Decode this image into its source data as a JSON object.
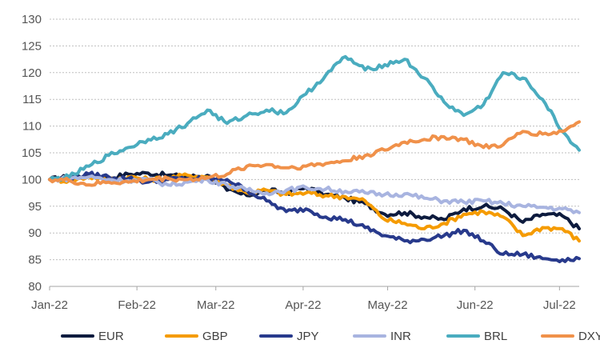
{
  "chart_data": {
    "type": "line",
    "title": "",
    "xlabel": "",
    "ylabel": "",
    "ylim": [
      80,
      130
    ],
    "yticks": [
      80,
      85,
      90,
      95,
      100,
      105,
      110,
      115,
      120,
      125,
      130
    ],
    "xlim": [
      "2022-01-01",
      "2022-07-08"
    ],
    "xticks": [
      {
        "date": "2022-01-01",
        "label": "Jan-22"
      },
      {
        "date": "2022-02-01",
        "label": "Feb-22"
      },
      {
        "date": "2022-03-01",
        "label": "Mar-22"
      },
      {
        "date": "2022-04-01",
        "label": "Apr-22"
      },
      {
        "date": "2022-05-01",
        "label": "May-22"
      },
      {
        "date": "2022-06-01",
        "label": "Jun-22"
      },
      {
        "date": "2022-07-01",
        "label": "Jul-22"
      }
    ],
    "grid": "horizontal",
    "legend_position": "bottom",
    "series": [
      {
        "name": "EUR",
        "color": "#0d1b3e",
        "points": [
          [
            "2022-01-01",
            100
          ],
          [
            "2022-01-08",
            100.5
          ],
          [
            "2022-01-15",
            100.8
          ],
          [
            "2022-01-22",
            100.3
          ],
          [
            "2022-01-29",
            101
          ],
          [
            "2022-02-05",
            101.2
          ],
          [
            "2022-02-12",
            100.8
          ],
          [
            "2022-02-19",
            100.5
          ],
          [
            "2022-02-26",
            100.8
          ],
          [
            "2022-03-05",
            98
          ],
          [
            "2022-03-12",
            97
          ],
          [
            "2022-03-19",
            98
          ],
          [
            "2022-03-26",
            97.5
          ],
          [
            "2022-04-02",
            98.5
          ],
          [
            "2022-04-09",
            97.2
          ],
          [
            "2022-04-16",
            96.5
          ],
          [
            "2022-04-23",
            95.5
          ],
          [
            "2022-04-30",
            93.5
          ],
          [
            "2022-05-07",
            93.8
          ],
          [
            "2022-05-14",
            93
          ],
          [
            "2022-05-21",
            92.5
          ],
          [
            "2022-05-28",
            94.5
          ],
          [
            "2022-06-04",
            95
          ],
          [
            "2022-06-11",
            94.5
          ],
          [
            "2022-06-18",
            92
          ],
          [
            "2022-06-25",
            93.5
          ],
          [
            "2022-07-02",
            93.2
          ],
          [
            "2022-07-08",
            90.8
          ]
        ]
      },
      {
        "name": "GBP",
        "color": "#f59b00",
        "points": [
          [
            "2022-01-01",
            100
          ],
          [
            "2022-01-08",
            99.8
          ],
          [
            "2022-01-15",
            100.5
          ],
          [
            "2022-01-22",
            100
          ],
          [
            "2022-01-29",
            100.5
          ],
          [
            "2022-02-05",
            100
          ],
          [
            "2022-02-12",
            100.3
          ],
          [
            "2022-02-19",
            100.8
          ],
          [
            "2022-02-26",
            100.5
          ],
          [
            "2022-03-05",
            99
          ],
          [
            "2022-03-12",
            97.5
          ],
          [
            "2022-03-19",
            98
          ],
          [
            "2022-03-26",
            97.2
          ],
          [
            "2022-04-02",
            97.5
          ],
          [
            "2022-04-09",
            97
          ],
          [
            "2022-04-16",
            96.8
          ],
          [
            "2022-04-23",
            96
          ],
          [
            "2022-04-30",
            92.5
          ],
          [
            "2022-05-07",
            91.8
          ],
          [
            "2022-05-14",
            90.8
          ],
          [
            "2022-05-21",
            91.8
          ],
          [
            "2022-05-28",
            93.5
          ],
          [
            "2022-06-04",
            94
          ],
          [
            "2022-06-11",
            93
          ],
          [
            "2022-06-18",
            89.5
          ],
          [
            "2022-06-25",
            91
          ],
          [
            "2022-07-02",
            90.8
          ],
          [
            "2022-07-08",
            88.5
          ]
        ]
      },
      {
        "name": "JPY",
        "color": "#283a8c",
        "points": [
          [
            "2022-01-01",
            100
          ],
          [
            "2022-01-08",
            100.2
          ],
          [
            "2022-01-15",
            101
          ],
          [
            "2022-01-22",
            100.5
          ],
          [
            "2022-01-29",
            100.2
          ],
          [
            "2022-02-05",
            99.5
          ],
          [
            "2022-02-12",
            100
          ],
          [
            "2022-02-19",
            100.2
          ],
          [
            "2022-02-26",
            100
          ],
          [
            "2022-03-05",
            100
          ],
          [
            "2022-03-12",
            98
          ],
          [
            "2022-03-19",
            96
          ],
          [
            "2022-03-26",
            94
          ],
          [
            "2022-04-02",
            94.5
          ],
          [
            "2022-04-09",
            93
          ],
          [
            "2022-04-16",
            92.5
          ],
          [
            "2022-04-23",
            91
          ],
          [
            "2022-04-30",
            89.5
          ],
          [
            "2022-05-07",
            88.5
          ],
          [
            "2022-05-14",
            88.8
          ],
          [
            "2022-05-21",
            89.5
          ],
          [
            "2022-05-28",
            90.5
          ],
          [
            "2022-06-04",
            88.5
          ],
          [
            "2022-06-11",
            86
          ],
          [
            "2022-06-18",
            86
          ],
          [
            "2022-06-25",
            85.2
          ],
          [
            "2022-07-02",
            85
          ],
          [
            "2022-07-08",
            85.2
          ]
        ]
      },
      {
        "name": "INR",
        "color": "#a8b4e0",
        "points": [
          [
            "2022-01-01",
            100
          ],
          [
            "2022-01-08",
            100.2
          ],
          [
            "2022-01-15",
            100.5
          ],
          [
            "2022-01-22",
            100
          ],
          [
            "2022-01-29",
            99.8
          ],
          [
            "2022-02-05",
            100
          ],
          [
            "2022-02-12",
            99
          ],
          [
            "2022-02-19",
            99.5
          ],
          [
            "2022-02-26",
            100
          ],
          [
            "2022-03-05",
            99
          ],
          [
            "2022-03-12",
            98
          ],
          [
            "2022-03-19",
            97.5
          ],
          [
            "2022-03-26",
            98
          ],
          [
            "2022-04-02",
            98.5
          ],
          [
            "2022-04-09",
            98.2
          ],
          [
            "2022-04-16",
            97.8
          ],
          [
            "2022-04-23",
            97.5
          ],
          [
            "2022-04-30",
            97.2
          ],
          [
            "2022-05-07",
            97.3
          ],
          [
            "2022-05-14",
            96.5
          ],
          [
            "2022-05-21",
            96
          ],
          [
            "2022-05-28",
            95.8
          ],
          [
            "2022-06-04",
            96
          ],
          [
            "2022-06-11",
            95.5
          ],
          [
            "2022-06-18",
            95
          ],
          [
            "2022-06-25",
            94.8
          ],
          [
            "2022-07-02",
            94.5
          ],
          [
            "2022-07-08",
            93.8
          ]
        ]
      },
      {
        "name": "BRL",
        "color": "#4aacbf",
        "points": [
          [
            "2022-01-01",
            100
          ],
          [
            "2022-01-08",
            100.5
          ],
          [
            "2022-01-15",
            102.5
          ],
          [
            "2022-01-22",
            104.5
          ],
          [
            "2022-01-29",
            106
          ],
          [
            "2022-02-05",
            107.5
          ],
          [
            "2022-02-12",
            108.5
          ],
          [
            "2022-02-19",
            110.5
          ],
          [
            "2022-02-26",
            113
          ],
          [
            "2022-03-05",
            110.5
          ],
          [
            "2022-03-12",
            112
          ],
          [
            "2022-03-19",
            113
          ],
          [
            "2022-03-26",
            112.5
          ],
          [
            "2022-04-02",
            116
          ],
          [
            "2022-04-09",
            119.5
          ],
          [
            "2022-04-16",
            123
          ],
          [
            "2022-04-23",
            120.5
          ],
          [
            "2022-04-30",
            121.5
          ],
          [
            "2022-05-07",
            122.5
          ],
          [
            "2022-05-14",
            119
          ],
          [
            "2022-05-21",
            114.5
          ],
          [
            "2022-05-28",
            112
          ],
          [
            "2022-06-04",
            114
          ],
          [
            "2022-06-11",
            120
          ],
          [
            "2022-06-18",
            119
          ],
          [
            "2022-06-25",
            115
          ],
          [
            "2022-07-02",
            109
          ],
          [
            "2022-07-08",
            105.5
          ]
        ]
      },
      {
        "name": "DXY",
        "color": "#f0914a",
        "points": [
          [
            "2022-01-01",
            100
          ],
          [
            "2022-01-08",
            99.8
          ],
          [
            "2022-01-15",
            99
          ],
          [
            "2022-01-22",
            99.5
          ],
          [
            "2022-01-29",
            99.5
          ],
          [
            "2022-02-05",
            100
          ],
          [
            "2022-02-12",
            100.2
          ],
          [
            "2022-02-19",
            100
          ],
          [
            "2022-02-26",
            100.3
          ],
          [
            "2022-03-05",
            101
          ],
          [
            "2022-03-12",
            102.5
          ],
          [
            "2022-03-19",
            102.8
          ],
          [
            "2022-03-26",
            102.2
          ],
          [
            "2022-04-02",
            102.5
          ],
          [
            "2022-04-09",
            103
          ],
          [
            "2022-04-16",
            103.5
          ],
          [
            "2022-04-23",
            104.5
          ],
          [
            "2022-04-30",
            105.5
          ],
          [
            "2022-05-07",
            107
          ],
          [
            "2022-05-14",
            107.5
          ],
          [
            "2022-05-21",
            108
          ],
          [
            "2022-05-28",
            107.5
          ],
          [
            "2022-06-04",
            106
          ],
          [
            "2022-06-11",
            106.5
          ],
          [
            "2022-06-18",
            109
          ],
          [
            "2022-06-25",
            108.5
          ],
          [
            "2022-07-02",
            109
          ],
          [
            "2022-07-08",
            110.8
          ]
        ]
      }
    ]
  }
}
